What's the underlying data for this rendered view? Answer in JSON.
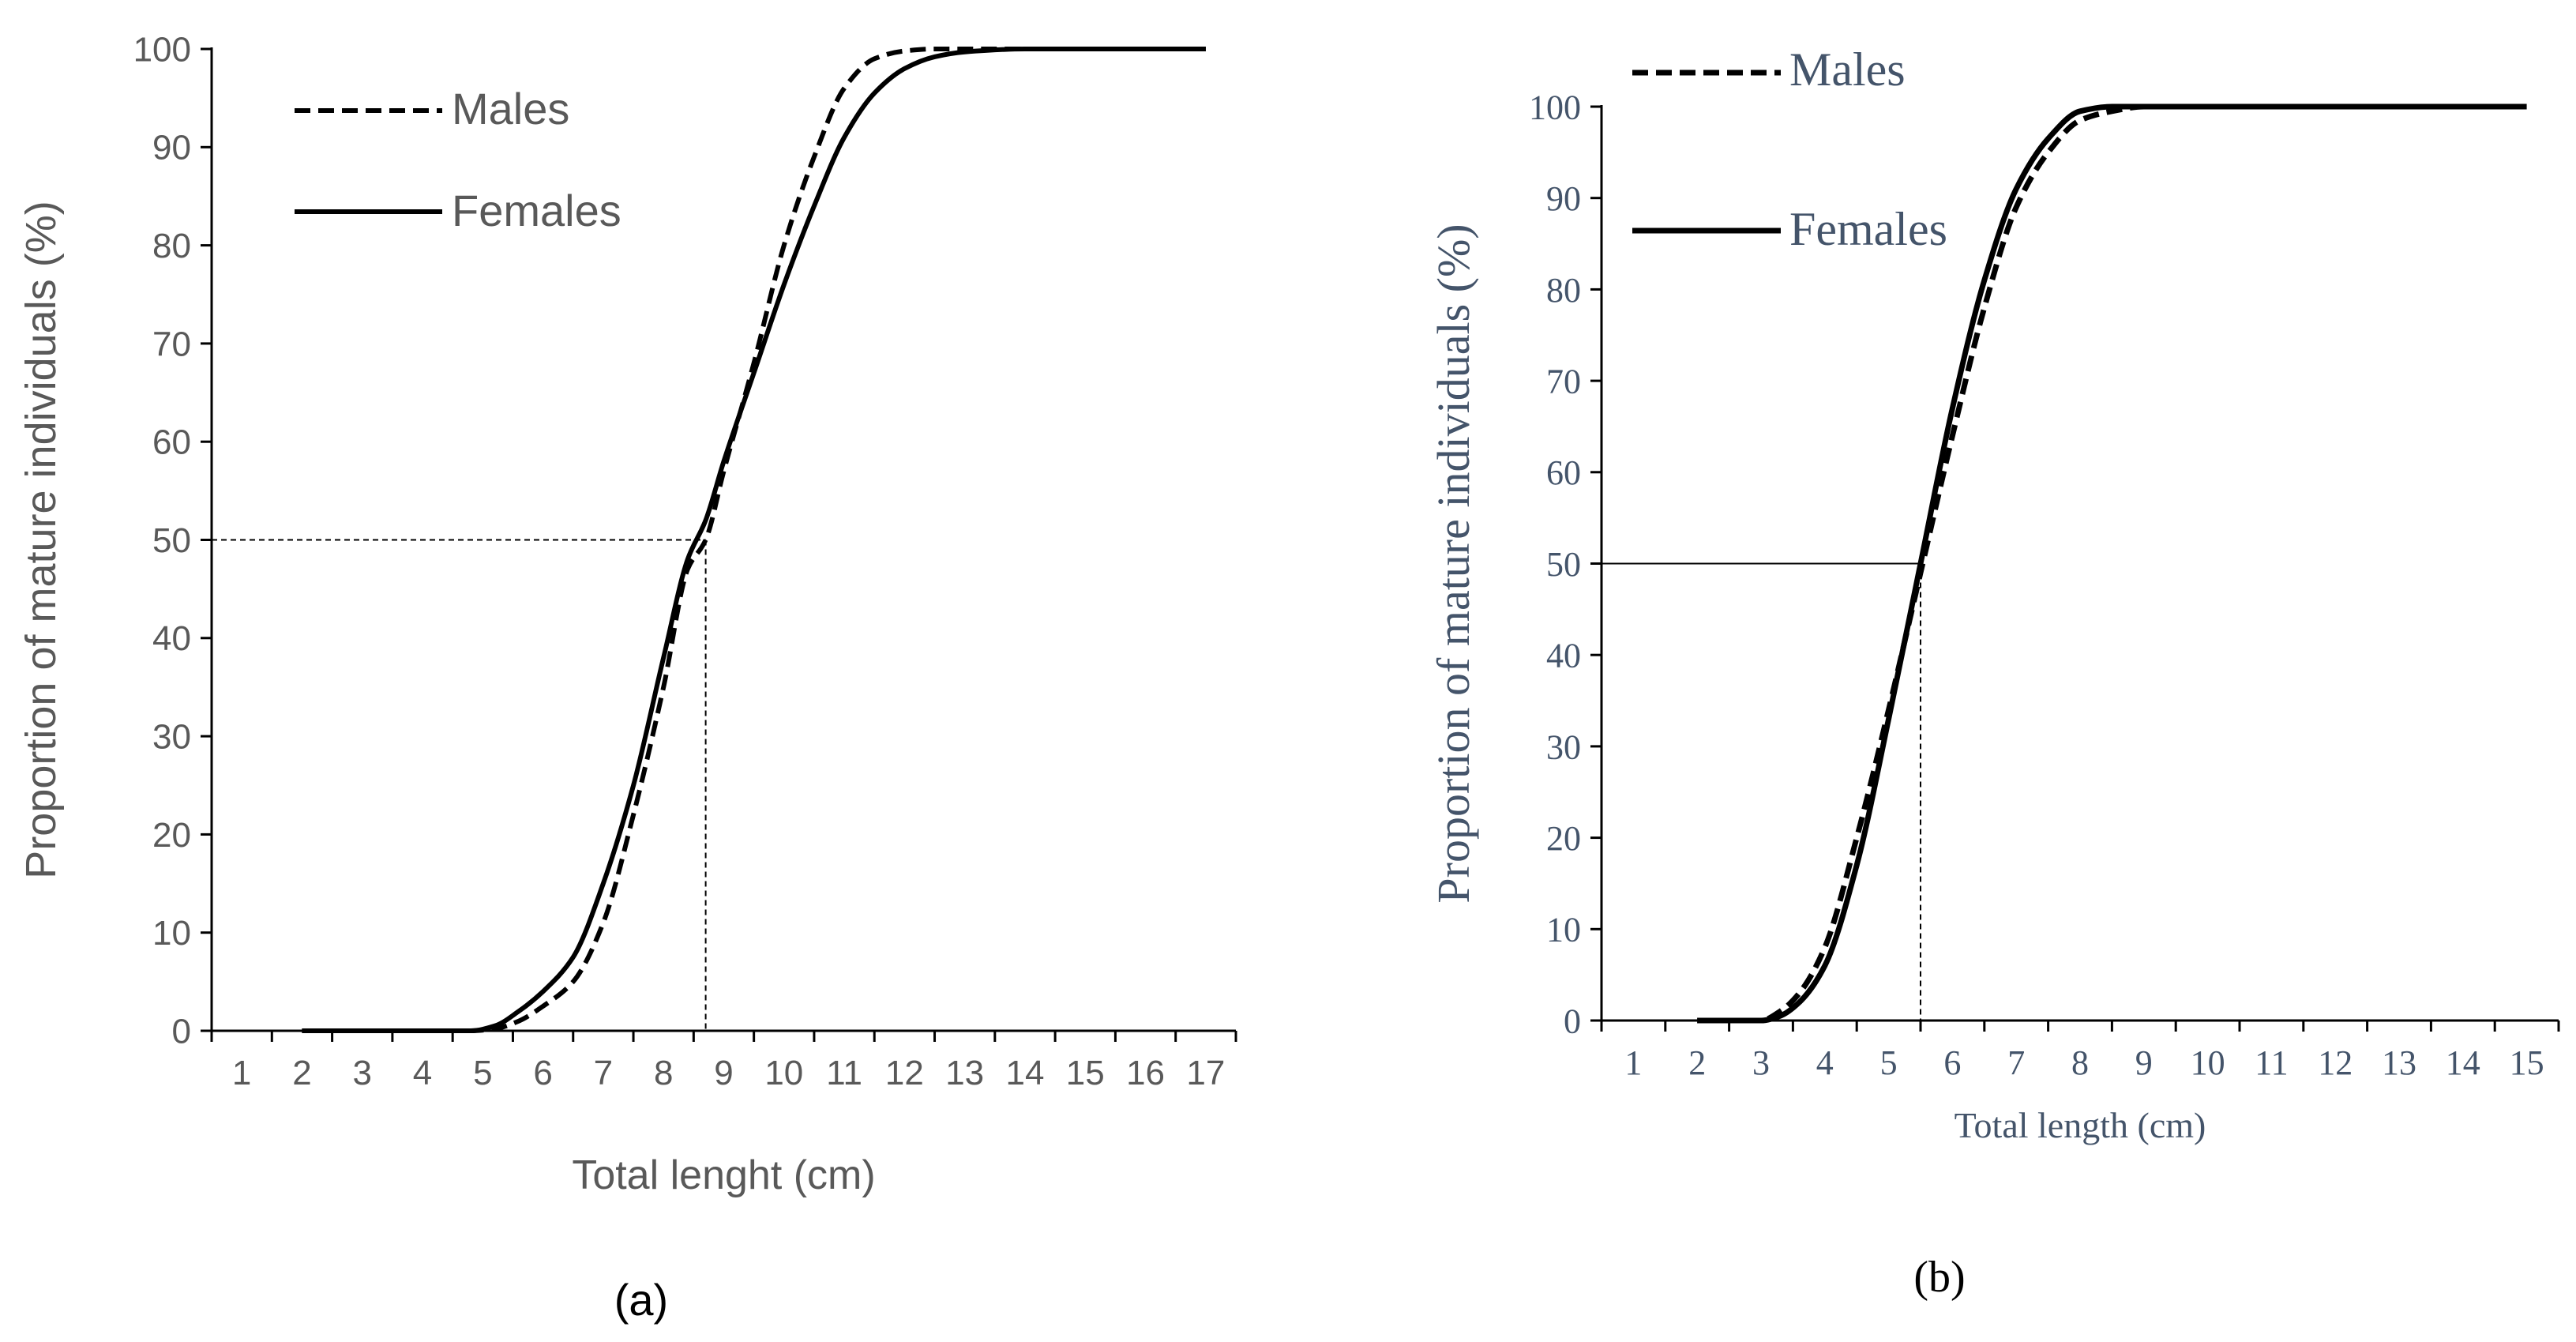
{
  "chart_data": [
    {
      "id": "a",
      "type": "line",
      "panel_label": "(a)",
      "xlabel": "Total lenght (cm)",
      "ylabel": "Proportion of  mature individuals (%)",
      "xlim": [
        0.5,
        17.5
      ],
      "ylim": [
        0,
        100
      ],
      "x_ticks": [
        1,
        2,
        3,
        4,
        5,
        6,
        7,
        8,
        9,
        10,
        11,
        12,
        13,
        14,
        15,
        16,
        17
      ],
      "y_ticks": [
        0,
        10,
        20,
        30,
        40,
        50,
        60,
        70,
        80,
        90,
        100
      ],
      "legend_position": "top-left",
      "reference": {
        "y": 50,
        "x": 8.7,
        "style": "dashed"
      },
      "series": [
        {
          "name": "Males",
          "style": "dashed",
          "x": [
            2,
            3,
            4,
            4.8,
            5.2,
            5.6,
            6,
            6.5,
            7,
            7.5,
            8,
            8.4,
            8.7,
            9,
            9.5,
            10,
            10.5,
            11,
            11.5,
            12,
            12.5,
            13,
            14,
            15,
            16,
            17
          ],
          "y": [
            0,
            0,
            0,
            0,
            0.2,
            1,
            2.5,
            5,
            11,
            22,
            35,
            47,
            50,
            57,
            68,
            80,
            89,
            96,
            99,
            99.8,
            100,
            100,
            100,
            100,
            100,
            100
          ]
        },
        {
          "name": "Females",
          "style": "solid",
          "x": [
            2,
            3,
            4,
            4.8,
            5.2,
            5.6,
            6,
            6.5,
            7,
            7.5,
            8,
            8.4,
            8.7,
            9,
            9.5,
            10,
            10.5,
            11,
            11.5,
            12,
            12.5,
            13,
            14,
            15,
            16,
            17
          ],
          "y": [
            0,
            0,
            0,
            0,
            0.5,
            2,
            4,
            7.5,
            15,
            25,
            38,
            48,
            52,
            58,
            67,
            76,
            84,
            91,
            95.5,
            98,
            99.2,
            99.7,
            100,
            100,
            100,
            100
          ]
        }
      ]
    },
    {
      "id": "b",
      "type": "line",
      "panel_label": "(b)",
      "xlabel": "Total length (cm)",
      "ylabel": "Proportion of  mature individuals (%)",
      "xlim": [
        0.5,
        15.5
      ],
      "ylim": [
        0,
        100
      ],
      "x_ticks": [
        1,
        2,
        3,
        4,
        5,
        6,
        7,
        8,
        9,
        10,
        11,
        12,
        13,
        14,
        15
      ],
      "y_ticks": [
        0,
        10,
        20,
        30,
        40,
        50,
        60,
        70,
        80,
        90,
        100
      ],
      "legend_position": "top-left",
      "reference": {
        "y": 50,
        "x": 5.5,
        "style": "solid"
      },
      "series": [
        {
          "name": "Males",
          "style": "dashed",
          "x": [
            2,
            2.5,
            3,
            3.3,
            3.6,
            4,
            4.5,
            5,
            5.5,
            6,
            6.5,
            7,
            7.5,
            8,
            8.5,
            9,
            10,
            12,
            15
          ],
          "y": [
            0,
            0,
            0,
            1,
            3,
            8,
            20,
            34,
            49,
            64,
            78,
            89,
            95,
            98.5,
            99.5,
            100,
            100,
            100,
            100
          ]
        },
        {
          "name": "Females",
          "style": "solid",
          "x": [
            2,
            2.5,
            3,
            3.3,
            3.6,
            4,
            4.5,
            5,
            5.5,
            6,
            6.5,
            7,
            7.5,
            8,
            8.5,
            9,
            10,
            12,
            15
          ],
          "y": [
            0,
            0,
            0,
            0.5,
            2,
            6,
            17,
            33,
            50,
            67,
            81,
            91,
            96.5,
            99.5,
            100,
            100,
            100,
            100,
            100
          ]
        }
      ]
    }
  ]
}
